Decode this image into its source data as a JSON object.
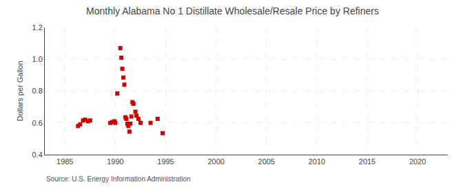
{
  "chart_data": {
    "type": "scatter",
    "title": "Monthly Alabama No 1 Distillate Wholesale/Resale Price by Refiners",
    "ylabel": "Dollars per Gallon",
    "source": "Source: U.S. Energy Information Administration",
    "color": "#cc0000",
    "marker": "square",
    "grid": true,
    "xlim": [
      1983,
      2023
    ],
    "ylim": [
      0.4,
      1.2
    ],
    "xticks": [
      1985,
      1990,
      1995,
      2000,
      2005,
      2010,
      2015,
      2020
    ],
    "yticks": [
      0.4,
      0.6,
      0.8,
      {
        "value": 1.0,
        "label": "1.0"
      },
      1.2
    ],
    "x": [
      1986.3,
      1986.5,
      1986.8,
      1987.0,
      1987.3,
      1987.5,
      1989.5,
      1989.7,
      1989.9,
      1990.0,
      1990.2,
      1990.5,
      1990.6,
      1990.7,
      1990.8,
      1990.9,
      1991.0,
      1991.1,
      1991.2,
      1991.3,
      1991.4,
      1991.5,
      1991.6,
      1991.7,
      1991.8,
      1992.0,
      1992.1,
      1992.3,
      1992.5,
      1993.5,
      1994.2,
      1994.7
    ],
    "values": [
      0.58,
      0.59,
      0.615,
      0.62,
      0.61,
      0.615,
      0.6,
      0.605,
      0.61,
      0.6,
      0.785,
      1.07,
      1.01,
      0.94,
      0.885,
      0.84,
      0.635,
      0.625,
      0.595,
      0.58,
      0.545,
      0.595,
      0.64,
      0.73,
      0.72,
      0.67,
      0.645,
      0.625,
      0.6,
      0.6,
      0.625,
      0.535
    ]
  }
}
